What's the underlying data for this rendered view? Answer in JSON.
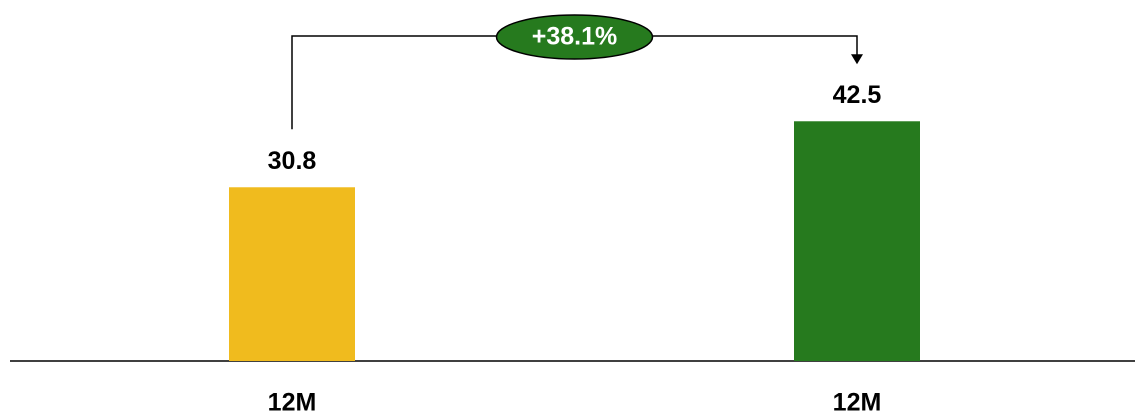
{
  "chart_data": {
    "type": "bar",
    "categories": [
      "12M",
      "12M"
    ],
    "values": [
      30.8,
      42.5
    ],
    "colors": [
      "#f0bb1e",
      "#267a1e"
    ],
    "ylim": [
      0,
      64
    ],
    "annotation": "+38.1%",
    "annotation_color": "#267a1e"
  }
}
